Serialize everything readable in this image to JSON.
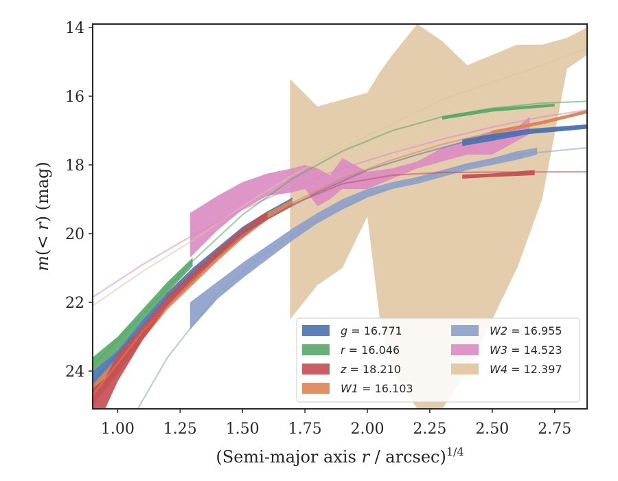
{
  "chart_data": {
    "type": "area",
    "xlabel": "(Semi-major axis r / arcsec)^{1/4}",
    "ylabel": "m(< r) (mag)",
    "xlim": [
      0.9,
      2.88
    ],
    "ylim": [
      25.1,
      13.9
    ],
    "y_inverted": true,
    "grid": false,
    "legend_position": "lower-right",
    "xticks": [
      "1.00",
      "1.25",
      "1.50",
      "1.75",
      "2.00",
      "2.25",
      "2.50",
      "2.75"
    ],
    "yticks": [
      "14",
      "16",
      "18",
      "20",
      "22",
      "24"
    ],
    "series": [
      {
        "name": "g = 16.771",
        "legend_letter": "g",
        "legend_value": "16.771",
        "color": "#4c72b0",
        "band": [
          [
            0.9,
            24.0,
            24.5
          ],
          [
            1.0,
            23.4,
            23.8
          ],
          [
            1.1,
            22.5,
            22.8
          ],
          [
            1.2,
            21.7,
            22.0
          ],
          [
            1.3,
            21.0,
            21.3
          ],
          [
            1.4,
            20.4,
            20.7
          ],
          [
            1.5,
            19.8,
            20.1
          ],
          [
            1.6,
            19.35,
            19.55
          ],
          [
            1.7,
            18.95,
            19.15
          ]
        ],
        "model": [
          [
            0.9,
            24.3
          ],
          [
            1.2,
            21.85
          ],
          [
            1.5,
            19.95
          ],
          [
            1.8,
            18.8
          ],
          [
            2.0,
            18.15
          ],
          [
            2.2,
            17.7
          ],
          [
            2.4,
            17.3
          ],
          [
            2.6,
            17.05
          ],
          [
            2.88,
            16.9
          ]
        ],
        "model_band": [
          [
            2.38,
            17.25,
            17.45
          ],
          [
            2.5,
            17.1,
            17.3
          ],
          [
            2.65,
            16.95,
            17.1
          ],
          [
            2.88,
            16.82,
            16.95
          ]
        ]
      },
      {
        "name": "r = 16.046",
        "legend_letter": "r",
        "legend_value": "16.046",
        "color": "#55a868",
        "band": [
          [
            0.9,
            23.6,
            24.0
          ],
          [
            1.0,
            23.0,
            23.4
          ],
          [
            1.1,
            22.2,
            22.5
          ],
          [
            1.2,
            21.4,
            21.7
          ],
          [
            1.3,
            20.7,
            20.95
          ]
        ],
        "model": [
          [
            0.9,
            23.85
          ],
          [
            1.1,
            22.35
          ],
          [
            1.3,
            20.8
          ],
          [
            1.5,
            19.45
          ],
          [
            1.7,
            18.4
          ],
          [
            1.9,
            17.6
          ],
          [
            2.1,
            17.0
          ],
          [
            2.3,
            16.6
          ],
          [
            2.5,
            16.35
          ],
          [
            2.7,
            16.2
          ],
          [
            2.88,
            16.15
          ]
        ],
        "model_band": [
          [
            2.3,
            16.58,
            16.68
          ],
          [
            2.5,
            16.35,
            16.45
          ],
          [
            2.75,
            16.22,
            16.3
          ]
        ]
      },
      {
        "name": "z = 18.210",
        "legend_letter": "z",
        "legend_value": "18.210",
        "color": "#c44e52",
        "band": [
          [
            0.9,
            24.5,
            25.2
          ],
          [
            0.95,
            24.2,
            25.1
          ],
          [
            1.0,
            23.5,
            24.3
          ],
          [
            1.1,
            22.7,
            23.1
          ],
          [
            1.2,
            21.8,
            22.1
          ],
          [
            1.3,
            21.1,
            21.4
          ],
          [
            1.4,
            20.45,
            20.7
          ],
          [
            1.5,
            19.85,
            20.1
          ],
          [
            1.6,
            19.35,
            19.55
          ]
        ],
        "model": [
          [
            0.9,
            24.9
          ],
          [
            1.1,
            22.9
          ],
          [
            1.3,
            21.25
          ],
          [
            1.5,
            20.0
          ],
          [
            1.7,
            19.15
          ],
          [
            1.9,
            18.55
          ],
          [
            2.1,
            18.3
          ],
          [
            2.3,
            18.22
          ],
          [
            2.5,
            18.21
          ],
          [
            2.88,
            18.2
          ]
        ],
        "model_band": [
          [
            2.38,
            18.28,
            18.4
          ],
          [
            2.5,
            18.25,
            18.35
          ],
          [
            2.67,
            18.15,
            18.3
          ]
        ]
      },
      {
        "name": "W1 = 16.103",
        "legend_letter": "W1",
        "legend_value": "16.103",
        "color": "#dd8452",
        "band": [
          [
            0.9,
            24.4,
            25.0
          ],
          [
            1.0,
            23.6,
            24.1
          ],
          [
            1.1,
            22.7,
            23.1
          ],
          [
            1.2,
            21.9,
            22.2
          ],
          [
            1.3,
            21.2,
            21.5
          ],
          [
            1.4,
            20.55,
            20.8
          ],
          [
            1.5,
            19.9,
            20.15
          ],
          [
            1.6,
            19.4,
            19.6
          ],
          [
            1.7,
            19.0,
            19.2
          ]
        ],
        "model": [
          [
            0.9,
            24.7
          ],
          [
            1.1,
            22.85
          ],
          [
            1.3,
            21.35
          ],
          [
            1.5,
            20.05
          ],
          [
            1.7,
            19.1
          ],
          [
            1.9,
            18.4
          ],
          [
            2.1,
            17.85
          ],
          [
            2.3,
            17.4
          ],
          [
            2.5,
            17.05
          ],
          [
            2.7,
            16.75
          ],
          [
            2.88,
            16.45
          ]
        ],
        "model_band": [
          [
            2.5,
            17.0,
            17.1
          ],
          [
            2.7,
            16.72,
            16.82
          ],
          [
            2.88,
            16.4,
            16.5
          ]
        ]
      },
      {
        "name": "W2 = 16.955",
        "legend_letter": "W2",
        "legend_value": "16.955",
        "color": "#8c9fc9",
        "band": [
          [
            1.29,
            22.0,
            22.8
          ],
          [
            1.4,
            21.4,
            21.9
          ],
          [
            1.5,
            20.85,
            21.3
          ],
          [
            1.6,
            20.35,
            20.75
          ],
          [
            1.7,
            19.85,
            20.2
          ],
          [
            1.8,
            19.4,
            19.7
          ],
          [
            1.9,
            19.0,
            19.3
          ],
          [
            2.0,
            18.7,
            18.95
          ],
          [
            2.1,
            18.5,
            18.7
          ],
          [
            2.2,
            18.35,
            18.55
          ],
          [
            2.3,
            18.15,
            18.35
          ],
          [
            2.4,
            17.95,
            18.15
          ],
          [
            2.5,
            17.8,
            18.0
          ],
          [
            2.6,
            17.6,
            17.85
          ],
          [
            2.68,
            17.5,
            17.7
          ]
        ],
        "model": [
          [
            1.08,
            25.1
          ],
          [
            1.2,
            23.6
          ],
          [
            1.4,
            21.75
          ],
          [
            1.6,
            20.5
          ],
          [
            1.8,
            19.6
          ],
          [
            2.0,
            18.9
          ],
          [
            2.2,
            18.4
          ],
          [
            2.4,
            18.0
          ],
          [
            2.6,
            17.7
          ],
          [
            2.88,
            17.5
          ]
        ],
        "model_band": []
      },
      {
        "name": "W3 = 14.523",
        "legend_letter": "W3",
        "legend_value": "14.523",
        "color": "#da8bc3",
        "band": [
          [
            1.29,
            19.4,
            20.7
          ],
          [
            1.4,
            18.9,
            19.9
          ],
          [
            1.5,
            18.5,
            19.3
          ],
          [
            1.6,
            18.25,
            18.9
          ],
          [
            1.7,
            18.1,
            18.8
          ],
          [
            1.75,
            18.0,
            18.7
          ],
          [
            1.8,
            18.1,
            19.2
          ],
          [
            1.85,
            18.3,
            19.0
          ],
          [
            1.9,
            17.8,
            18.7
          ],
          [
            2.0,
            18.2,
            18.7
          ],
          [
            2.1,
            18.1,
            18.4
          ],
          [
            2.2,
            17.9,
            18.1
          ],
          [
            2.3,
            17.5,
            17.9
          ],
          [
            2.4,
            17.3,
            17.7
          ],
          [
            2.5,
            17.0,
            17.7
          ],
          [
            2.6,
            16.9,
            17.3
          ],
          [
            2.65,
            16.6,
            17.1
          ]
        ],
        "model": [
          [
            0.9,
            21.85
          ],
          [
            1.1,
            20.9
          ],
          [
            1.3,
            20.05
          ],
          [
            1.5,
            19.3
          ],
          [
            1.7,
            18.65
          ],
          [
            1.9,
            18.1
          ],
          [
            2.1,
            17.65
          ],
          [
            2.3,
            17.25
          ],
          [
            2.5,
            16.9
          ],
          [
            2.7,
            16.6
          ],
          [
            2.88,
            16.4
          ]
        ],
        "model_band": []
      },
      {
        "name": "W4 = 12.397",
        "legend_letter": "W4",
        "legend_value": "12.397",
        "color": "#dfc49d",
        "band": [
          [
            1.69,
            15.5,
            22.5
          ],
          [
            1.8,
            16.3,
            21.5
          ],
          [
            1.9,
            16.1,
            21.0
          ],
          [
            2.0,
            15.9,
            19.5
          ],
          [
            2.05,
            15.3,
            22.5
          ],
          [
            2.1,
            14.8,
            24.0
          ],
          [
            2.2,
            13.9,
            25.1
          ],
          [
            2.3,
            14.4,
            25.1
          ],
          [
            2.4,
            15.1,
            24.0
          ],
          [
            2.5,
            14.8,
            22.5
          ],
          [
            2.6,
            14.5,
            21.0
          ],
          [
            2.7,
            14.5,
            19.0
          ],
          [
            2.8,
            14.3,
            15.2
          ],
          [
            2.88,
            14.0,
            14.8
          ]
        ],
        "model": [
          [
            0.9,
            22.1
          ],
          [
            1.1,
            21.1
          ],
          [
            1.3,
            20.2
          ],
          [
            1.5,
            19.2
          ],
          [
            1.7,
            18.3
          ],
          [
            1.9,
            17.5
          ],
          [
            2.1,
            16.8
          ],
          [
            2.3,
            16.1
          ],
          [
            2.5,
            15.6
          ],
          [
            2.7,
            15.1
          ],
          [
            2.88,
            14.6
          ]
        ],
        "model_band": []
      }
    ]
  }
}
